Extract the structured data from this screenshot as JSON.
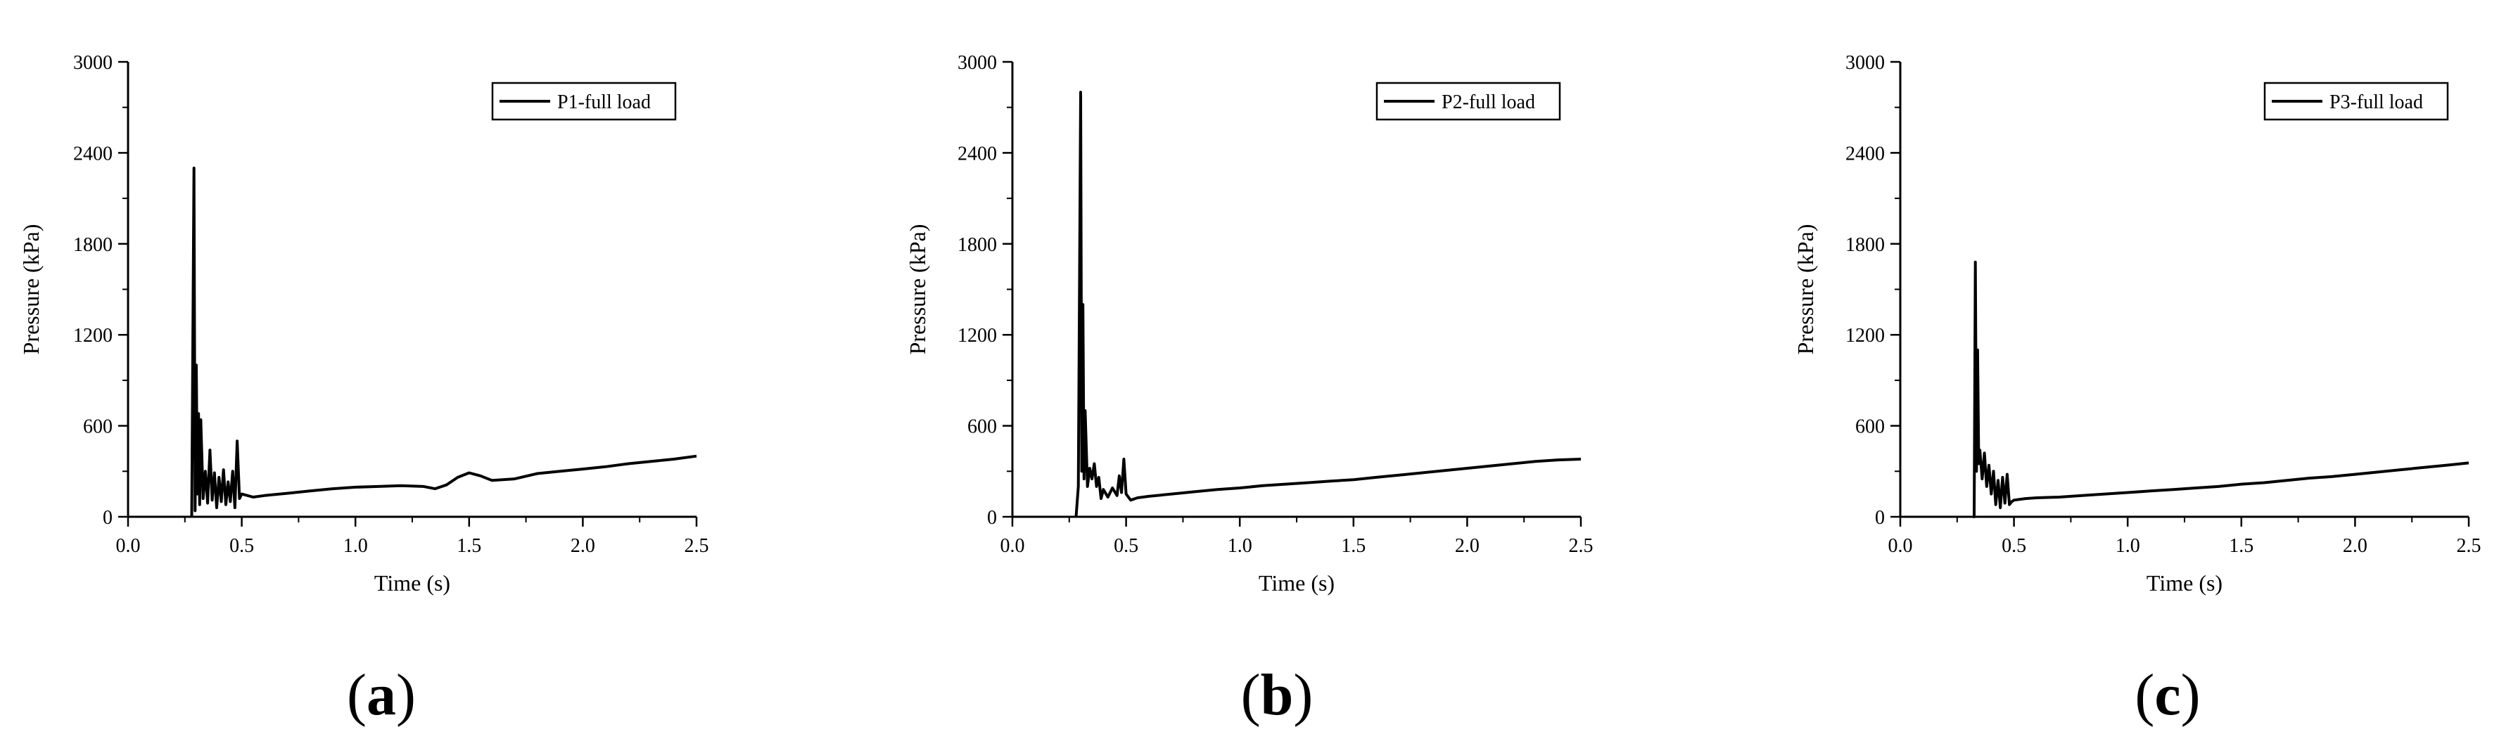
{
  "chart_data": [
    {
      "type": "line",
      "panel_label": "a",
      "xlabel": "Time (s)",
      "ylabel": "Pressure (kPa)",
      "xlim": [
        0.0,
        2.5
      ],
      "ylim": [
        0,
        3000
      ],
      "xticks": [
        "0.0",
        "0.5",
        "1.0",
        "1.5",
        "2.0",
        "2.5"
      ],
      "yticks": [
        "0",
        "600",
        "1200",
        "1800",
        "2400",
        "3000"
      ],
      "grid": false,
      "legend_position": "top-right",
      "series": [
        {
          "name": "P1-full load",
          "color": "#000000",
          "points": [
            [
              0.28,
              0
            ],
            [
              0.29,
              2300
            ],
            [
              0.295,
              40
            ],
            [
              0.3,
              1000
            ],
            [
              0.305,
              150
            ],
            [
              0.31,
              680
            ],
            [
              0.315,
              80
            ],
            [
              0.32,
              640
            ],
            [
              0.33,
              120
            ],
            [
              0.34,
              300
            ],
            [
              0.35,
              90
            ],
            [
              0.36,
              440
            ],
            [
              0.37,
              110
            ],
            [
              0.38,
              290
            ],
            [
              0.39,
              60
            ],
            [
              0.4,
              260
            ],
            [
              0.41,
              100
            ],
            [
              0.42,
              310
            ],
            [
              0.43,
              80
            ],
            [
              0.44,
              230
            ],
            [
              0.45,
              100
            ],
            [
              0.46,
              300
            ],
            [
              0.47,
              60
            ],
            [
              0.48,
              500
            ],
            [
              0.49,
              120
            ],
            [
              0.5,
              150
            ],
            [
              0.55,
              130
            ],
            [
              0.6,
              140
            ],
            [
              0.7,
              155
            ],
            [
              0.8,
              170
            ],
            [
              0.9,
              185
            ],
            [
              1.0,
              195
            ],
            [
              1.1,
              200
            ],
            [
              1.2,
              205
            ],
            [
              1.3,
              200
            ],
            [
              1.35,
              185
            ],
            [
              1.4,
              210
            ],
            [
              1.45,
              260
            ],
            [
              1.5,
              290
            ],
            [
              1.55,
              270
            ],
            [
              1.6,
              240
            ],
            [
              1.7,
              250
            ],
            [
              1.8,
              285
            ],
            [
              1.9,
              300
            ],
            [
              2.0,
              315
            ],
            [
              2.1,
              330
            ],
            [
              2.2,
              350
            ],
            [
              2.3,
              365
            ],
            [
              2.4,
              380
            ],
            [
              2.5,
              400
            ]
          ]
        }
      ]
    },
    {
      "type": "line",
      "panel_label": "b",
      "xlabel": "Time (s)",
      "ylabel": "Pressure (kPa)",
      "xlim": [
        0.0,
        2.5
      ],
      "ylim": [
        0,
        3000
      ],
      "xticks": [
        "0.0",
        "0.5",
        "1.0",
        "1.5",
        "2.0",
        "2.5"
      ],
      "yticks": [
        "0",
        "600",
        "1200",
        "1800",
        "2400",
        "3000"
      ],
      "grid": false,
      "legend_position": "top-right",
      "series": [
        {
          "name": "P2-full load",
          "color": "#000000",
          "points": [
            [
              0.28,
              0
            ],
            [
              0.29,
              200
            ],
            [
              0.3,
              2800
            ],
            [
              0.305,
              300
            ],
            [
              0.31,
              1400
            ],
            [
              0.315,
              250
            ],
            [
              0.32,
              700
            ],
            [
              0.33,
              200
            ],
            [
              0.34,
              320
            ],
            [
              0.35,
              250
            ],
            [
              0.36,
              350
            ],
            [
              0.37,
              200
            ],
            [
              0.38,
              260
            ],
            [
              0.39,
              120
            ],
            [
              0.4,
              180
            ],
            [
              0.42,
              130
            ],
            [
              0.44,
              190
            ],
            [
              0.46,
              140
            ],
            [
              0.47,
              270
            ],
            [
              0.48,
              160
            ],
            [
              0.49,
              380
            ],
            [
              0.5,
              150
            ],
            [
              0.52,
              110
            ],
            [
              0.55,
              125
            ],
            [
              0.6,
              135
            ],
            [
              0.7,
              150
            ],
            [
              0.8,
              165
            ],
            [
              0.9,
              180
            ],
            [
              1.0,
              190
            ],
            [
              1.1,
              205
            ],
            [
              1.2,
              215
            ],
            [
              1.3,
              225
            ],
            [
              1.4,
              235
            ],
            [
              1.5,
              245
            ],
            [
              1.6,
              260
            ],
            [
              1.7,
              275
            ],
            [
              1.8,
              290
            ],
            [
              1.9,
              305
            ],
            [
              2.0,
              320
            ],
            [
              2.1,
              335
            ],
            [
              2.2,
              350
            ],
            [
              2.3,
              365
            ],
            [
              2.4,
              375
            ],
            [
              2.5,
              380
            ]
          ]
        }
      ]
    },
    {
      "type": "line",
      "panel_label": "c",
      "xlabel": "Time (s)",
      "ylabel": "Pressure (kPa)",
      "xlim": [
        0.0,
        2.5
      ],
      "ylim": [
        0,
        3000
      ],
      "xticks": [
        "0.0",
        "0.5",
        "1.0",
        "1.5",
        "2.0",
        "2.5"
      ],
      "yticks": [
        "0",
        "600",
        "1200",
        "1800",
        "2400",
        "3000"
      ],
      "grid": false,
      "legend_position": "top-right",
      "series": [
        {
          "name": "P3-full load",
          "color": "#000000",
          "points": [
            [
              0.32,
              0
            ],
            [
              0.325,
              0
            ],
            [
              0.33,
              1680
            ],
            [
              0.335,
              300
            ],
            [
              0.34,
              1100
            ],
            [
              0.345,
              350
            ],
            [
              0.35,
              440
            ],
            [
              0.36,
              250
            ],
            [
              0.37,
              420
            ],
            [
              0.38,
              200
            ],
            [
              0.39,
              340
            ],
            [
              0.4,
              150
            ],
            [
              0.41,
              300
            ],
            [
              0.42,
              80
            ],
            [
              0.43,
              240
            ],
            [
              0.44,
              60
            ],
            [
              0.45,
              260
            ],
            [
              0.46,
              90
            ],
            [
              0.47,
              280
            ],
            [
              0.48,
              80
            ],
            [
              0.49,
              100
            ],
            [
              0.5,
              110
            ],
            [
              0.55,
              120
            ],
            [
              0.6,
              125
            ],
            [
              0.7,
              130
            ],
            [
              0.8,
              140
            ],
            [
              0.9,
              150
            ],
            [
              1.0,
              160
            ],
            [
              1.1,
              170
            ],
            [
              1.2,
              180
            ],
            [
              1.3,
              190
            ],
            [
              1.4,
              200
            ],
            [
              1.5,
              215
            ],
            [
              1.6,
              225
            ],
            [
              1.7,
              240
            ],
            [
              1.8,
              255
            ],
            [
              1.9,
              265
            ],
            [
              2.0,
              280
            ],
            [
              2.1,
              295
            ],
            [
              2.2,
              310
            ],
            [
              2.3,
              325
            ],
            [
              2.4,
              340
            ],
            [
              2.5,
              355
            ]
          ]
        }
      ]
    }
  ]
}
